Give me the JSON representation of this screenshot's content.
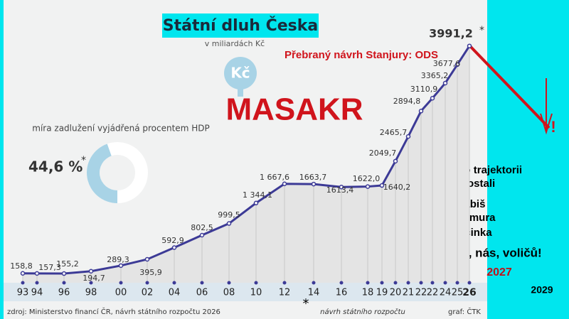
{
  "chart_data": {
    "type": "line",
    "title": "Státní dluh Česka",
    "subtitle": "v miliardách Kč",
    "headline": "Přebraný návrh Stanjury: ODS",
    "shout": "MASAKR",
    "icon": "Kč",
    "ratio_title": "míra zadlužení vyjádřená procentem HDP",
    "ratio": {
      "value": 44.6,
      "label": "44,6 %",
      "color": "#a8d3e6"
    },
    "asterisk": "*",
    "categories": [
      "93",
      "94",
      "96",
      "98",
      "00",
      "02",
      "04",
      "06",
      "08",
      "10",
      "12",
      "14",
      "16",
      "18",
      "19",
      "20",
      "21",
      "22",
      "22",
      "24",
      "25",
      "26"
    ],
    "values": [
      158.8,
      157.3,
      155.2,
      194.7,
      289.3,
      395.9,
      592.9,
      802.5,
      999.5,
      1344.1,
      1667.6,
      1663.7,
      1613.4,
      1622.0,
      1640.2,
      2049.7,
      2465.7,
      2894.8,
      3110.9,
      3365.2,
      3677.6,
      3991.2
    ],
    "value_labels": [
      "158,8",
      "157,3",
      "155,2",
      "194,7",
      "289,3",
      "395,9",
      "592,9",
      "802,5",
      "999,5",
      "1 344,1",
      "1 667,6",
      "1663,7",
      "1613,4",
      "1622,0",
      "1640,2",
      "2049,7",
      "2465,7",
      "2894,8",
      "3110,9",
      "3365,2",
      "3677,6",
      "3991,2"
    ],
    "color": "#3c3a96",
    "ylim": [
      0,
      4000
    ],
    "trajectory": [
      "Na tuto trajektorii",
      "dostali"
    ],
    "names": [
      "Babiš",
      "Okamura",
      "Macinka"
    ],
    "slogan": "mandát, nás, voličů!",
    "years": [
      "2027",
      "2029"
    ],
    "exclaim": "!",
    "source": "zdroj: Ministerstvo financí ČR, návrh státního rozpočtu 2026",
    "source_note": "návrh státního rozpočtu",
    "credit": "graf: ČTK"
  }
}
